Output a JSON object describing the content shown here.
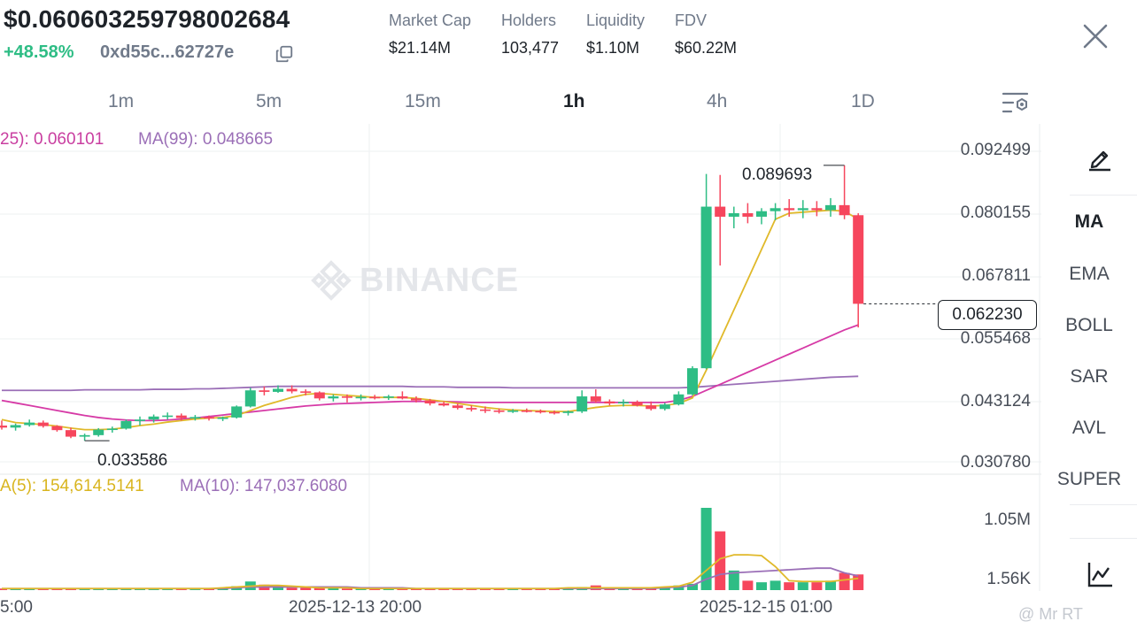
{
  "header": {
    "price": "$0.0606032597980026 84",
    "price_text": "$0.060603259798002684",
    "change": "+48.58%",
    "address": "0xd55c...62727e",
    "stats": [
      {
        "label": "Market Cap",
        "value": "$21.14M"
      },
      {
        "label": "Holders",
        "value": "103,477"
      },
      {
        "label": "Liquidity",
        "value": "$1.10M"
      },
      {
        "label": "FDV",
        "value": "$60.22M"
      }
    ]
  },
  "timeframes": [
    "1m",
    "5m",
    "15m",
    "1h",
    "4h",
    "1D"
  ],
  "active_timeframe": "1h",
  "indicators": {
    "ma_legend": [
      {
        "text": "25): 0.060101",
        "color": "#c93ea0"
      },
      {
        "text": "MA(99): 0.048665",
        "color": "#9b6fb7"
      }
    ],
    "vol_legend": [
      {
        "text": "A(5): 154,614.5141",
        "color": "#d9b51f"
      },
      {
        "text": "MA(10): 147,037.6080",
        "color": "#9b6fb7"
      }
    ]
  },
  "side_menu": [
    "MA",
    "EMA",
    "BOLL",
    "SAR",
    "AVL",
    "SUPER"
  ],
  "active_indicator": "MA",
  "watermark": "BINANCE",
  "credit": "@ Mr RT",
  "chart_data": {
    "type": "candlestick",
    "price_axis": [
      "0.092499",
      "0.080155",
      "0.067811",
      "0.055468",
      "0.043124",
      "0.030780"
    ],
    "volume_axis": [
      "1.05M",
      "1.56K"
    ],
    "x_labels": [
      "5:00",
      "2025-12-13 20:00",
      "2025-12-15 01:00"
    ],
    "last_price": "0.062230",
    "high_marker": "0.089693",
    "low_marker": "0.033586",
    "colors": {
      "up": "#2ebd85",
      "down": "#f6465d",
      "ma7": "#e0b92a",
      "ma25": "#d63aa6",
      "ma99": "#9b6fb7",
      "grid": "#eef0f2"
    },
    "candles": [
      [
        0.038,
        0.039,
        0.0372,
        0.0376
      ],
      [
        0.0376,
        0.0384,
        0.037,
        0.0381
      ],
      [
        0.0381,
        0.0392,
        0.0378,
        0.0386
      ],
      [
        0.0386,
        0.039,
        0.0376,
        0.0379
      ],
      [
        0.0379,
        0.0381,
        0.0368,
        0.0371
      ],
      [
        0.0371,
        0.0376,
        0.0355,
        0.0358
      ],
      [
        0.0358,
        0.0364,
        0.035,
        0.0361
      ],
      [
        0.0361,
        0.0375,
        0.0358,
        0.0372
      ],
      [
        0.0372,
        0.0378,
        0.0366,
        0.0374
      ],
      [
        0.0374,
        0.0392,
        0.0372,
        0.0389
      ],
      [
        0.0389,
        0.0398,
        0.038,
        0.0392
      ],
      [
        0.0392,
        0.0402,
        0.0386,
        0.0398
      ],
      [
        0.0398,
        0.0406,
        0.0392,
        0.04
      ],
      [
        0.04,
        0.0404,
        0.039,
        0.0395
      ],
      [
        0.0395,
        0.0401,
        0.039,
        0.0397
      ],
      [
        0.0397,
        0.04,
        0.039,
        0.0394
      ],
      [
        0.0394,
        0.0398,
        0.0389,
        0.0396
      ],
      [
        0.0396,
        0.042,
        0.0394,
        0.0418
      ],
      [
        0.0418,
        0.0455,
        0.0416,
        0.045
      ],
      [
        0.045,
        0.0458,
        0.044,
        0.0447
      ],
      [
        0.0447,
        0.046,
        0.0445,
        0.0453
      ],
      [
        0.0453,
        0.046,
        0.0444,
        0.0448
      ],
      [
        0.0448,
        0.0452,
        0.044,
        0.0446
      ],
      [
        0.0446,
        0.0448,
        0.043,
        0.0434
      ],
      [
        0.0434,
        0.0442,
        0.0428,
        0.0438
      ],
      [
        0.0438,
        0.0442,
        0.0426,
        0.0436
      ],
      [
        0.0436,
        0.0442,
        0.043,
        0.0437
      ],
      [
        0.0437,
        0.0441,
        0.0432,
        0.0436
      ],
      [
        0.0436,
        0.0441,
        0.0431,
        0.0438
      ],
      [
        0.0438,
        0.0448,
        0.0432,
        0.0434
      ],
      [
        0.0434,
        0.0438,
        0.0426,
        0.043
      ],
      [
        0.043,
        0.0433,
        0.042,
        0.0424
      ],
      [
        0.0424,
        0.0428,
        0.0418,
        0.042
      ],
      [
        0.042,
        0.0424,
        0.0412,
        0.0415
      ],
      [
        0.0415,
        0.042,
        0.0408,
        0.0412
      ],
      [
        0.0412,
        0.0418,
        0.0405,
        0.041
      ],
      [
        0.041,
        0.0414,
        0.0404,
        0.0409
      ],
      [
        0.0409,
        0.0413,
        0.0405,
        0.041
      ],
      [
        0.041,
        0.0414,
        0.0406,
        0.0409
      ],
      [
        0.0409,
        0.0412,
        0.0404,
        0.0407
      ],
      [
        0.0407,
        0.041,
        0.0402,
        0.0405
      ],
      [
        0.0405,
        0.041,
        0.04,
        0.0408
      ],
      [
        0.0408,
        0.045,
        0.0405,
        0.0438
      ],
      [
        0.0438,
        0.0452,
        0.0425,
        0.0428
      ],
      [
        0.0428,
        0.0432,
        0.042,
        0.0424
      ],
      [
        0.0424,
        0.0432,
        0.0418,
        0.0427
      ],
      [
        0.0427,
        0.043,
        0.0418,
        0.042
      ],
      [
        0.042,
        0.0428,
        0.041,
        0.0413
      ],
      [
        0.0413,
        0.0425,
        0.041,
        0.0422
      ],
      [
        0.0422,
        0.0448,
        0.042,
        0.0442
      ],
      [
        0.0442,
        0.0498,
        0.044,
        0.0494
      ],
      [
        0.0494,
        0.088,
        0.0492,
        0.0815
      ],
      [
        0.0815,
        0.0878,
        0.0698,
        0.0795
      ],
      [
        0.0795,
        0.0815,
        0.0772,
        0.0802
      ],
      [
        0.0802,
        0.0822,
        0.0782,
        0.0795
      ],
      [
        0.0795,
        0.0812,
        0.078,
        0.0806
      ],
      [
        0.0806,
        0.0822,
        0.0788,
        0.0812
      ],
      [
        0.0812,
        0.083,
        0.0795,
        0.0808
      ],
      [
        0.0808,
        0.0828,
        0.0792,
        0.0812
      ],
      [
        0.0812,
        0.0826,
        0.0796,
        0.0808
      ],
      [
        0.0808,
        0.0832,
        0.0795,
        0.0818
      ],
      [
        0.0818,
        0.0897,
        0.079,
        0.0798
      ],
      [
        0.0798,
        0.0802,
        0.0575,
        0.0622
      ]
    ],
    "ma7": [
      0.0392,
      0.0386,
      0.0384,
      0.0382,
      0.0379,
      0.0375,
      0.0372,
      0.0372,
      0.0373,
      0.0376,
      0.038,
      0.0383,
      0.0387,
      0.039,
      0.0393,
      0.0395,
      0.0396,
      0.04,
      0.041,
      0.042,
      0.0428,
      0.0436,
      0.0442,
      0.0444,
      0.0442,
      0.044,
      0.0438,
      0.0436,
      0.0436,
      0.0436,
      0.0434,
      0.0431,
      0.0428,
      0.0424,
      0.042,
      0.0416,
      0.0413,
      0.0411,
      0.041,
      0.0409,
      0.0408,
      0.0408,
      0.0412,
      0.0416,
      0.0419,
      0.042,
      0.042,
      0.0419,
      0.042,
      0.0424,
      0.0435,
      0.049,
      0.055,
      0.061,
      0.067,
      0.073,
      0.079,
      0.0802,
      0.0804,
      0.0806,
      0.0808,
      0.0806,
      0.079
    ],
    "ma25": [
      0.043,
      0.0425,
      0.042,
      0.0415,
      0.041,
      0.0405,
      0.04,
      0.0396,
      0.0393,
      0.0391,
      0.039,
      0.039,
      0.0391,
      0.0393,
      0.0395,
      0.0398,
      0.0401,
      0.0404,
      0.0407,
      0.041,
      0.0413,
      0.0416,
      0.0419,
      0.0421,
      0.0423,
      0.0424,
      0.0425,
      0.0426,
      0.0427,
      0.0428,
      0.0428,
      0.0428,
      0.0428,
      0.0427,
      0.0426,
      0.0426,
      0.0426,
      0.0426,
      0.0426,
      0.0426,
      0.0426,
      0.0426,
      0.0426,
      0.0426,
      0.0426,
      0.0426,
      0.0426,
      0.0426,
      0.0426,
      0.043,
      0.0438,
      0.045,
      0.0462,
      0.0474,
      0.0486,
      0.0498,
      0.051,
      0.0522,
      0.0534,
      0.0546,
      0.0558,
      0.057,
      0.058
    ],
    "ma99": [
      0.045,
      0.045,
      0.045,
      0.045,
      0.045,
      0.045,
      0.0451,
      0.0451,
      0.0451,
      0.0451,
      0.0451,
      0.0452,
      0.0452,
      0.0452,
      0.0453,
      0.0453,
      0.0454,
      0.0455,
      0.0456,
      0.0457,
      0.0458,
      0.0458,
      0.0458,
      0.0458,
      0.0458,
      0.0458,
      0.0458,
      0.0458,
      0.0458,
      0.0458,
      0.0457,
      0.0457,
      0.0457,
      0.0456,
      0.0456,
      0.0456,
      0.0456,
      0.0455,
      0.0455,
      0.0455,
      0.0455,
      0.0455,
      0.0455,
      0.0455,
      0.0455,
      0.0455,
      0.0455,
      0.0455,
      0.0455,
      0.0455,
      0.0456,
      0.0458,
      0.046,
      0.0462,
      0.0464,
      0.0466,
      0.0468,
      0.047,
      0.0472,
      0.0474,
      0.0476,
      0.0477,
      0.0478
    ],
    "volumes": [
      0.02,
      0.02,
      0.02,
      0.02,
      0.02,
      0.02,
      0.02,
      0.02,
      0.02,
      0.02,
      0.02,
      0.02,
      0.02,
      0.02,
      0.02,
      0.02,
      0.02,
      0.05,
      0.11,
      0.07,
      0.05,
      0.03,
      0.03,
      0.03,
      0.03,
      0.02,
      0.02,
      0.02,
      0.02,
      0.02,
      0.02,
      0.02,
      0.02,
      0.02,
      0.02,
      0.02,
      0.02,
      0.02,
      0.02,
      0.02,
      0.02,
      0.02,
      0.04,
      0.06,
      0.03,
      0.02,
      0.02,
      0.02,
      0.04,
      0.06,
      0.08,
      1.05,
      0.75,
      0.25,
      0.12,
      0.1,
      0.12,
      0.1,
      0.1,
      0.1,
      0.12,
      0.22,
      0.2
    ],
    "vol_ma5": [
      0.02,
      0.02,
      0.02,
      0.02,
      0.02,
      0.02,
      0.02,
      0.02,
      0.02,
      0.02,
      0.02,
      0.02,
      0.02,
      0.02,
      0.02,
      0.02,
      0.03,
      0.04,
      0.05,
      0.06,
      0.06,
      0.05,
      0.04,
      0.03,
      0.03,
      0.03,
      0.02,
      0.02,
      0.02,
      0.02,
      0.02,
      0.02,
      0.02,
      0.02,
      0.02,
      0.02,
      0.02,
      0.02,
      0.02,
      0.02,
      0.02,
      0.03,
      0.03,
      0.03,
      0.03,
      0.03,
      0.03,
      0.03,
      0.04,
      0.05,
      0.1,
      0.25,
      0.4,
      0.45,
      0.45,
      0.44,
      0.3,
      0.12,
      0.11,
      0.11,
      0.11,
      0.13,
      0.15
    ],
    "vol_ma10": [
      0.02,
      0.02,
      0.02,
      0.02,
      0.02,
      0.02,
      0.02,
      0.02,
      0.02,
      0.02,
      0.02,
      0.02,
      0.02,
      0.02,
      0.02,
      0.02,
      0.02,
      0.03,
      0.04,
      0.04,
      0.04,
      0.04,
      0.04,
      0.04,
      0.04,
      0.04,
      0.03,
      0.03,
      0.03,
      0.03,
      0.02,
      0.02,
      0.02,
      0.02,
      0.02,
      0.02,
      0.02,
      0.02,
      0.02,
      0.02,
      0.02,
      0.02,
      0.02,
      0.02,
      0.02,
      0.02,
      0.02,
      0.02,
      0.03,
      0.04,
      0.06,
      0.14,
      0.2,
      0.22,
      0.23,
      0.24,
      0.25,
      0.26,
      0.27,
      0.28,
      0.28,
      0.22,
      0.18
    ]
  }
}
